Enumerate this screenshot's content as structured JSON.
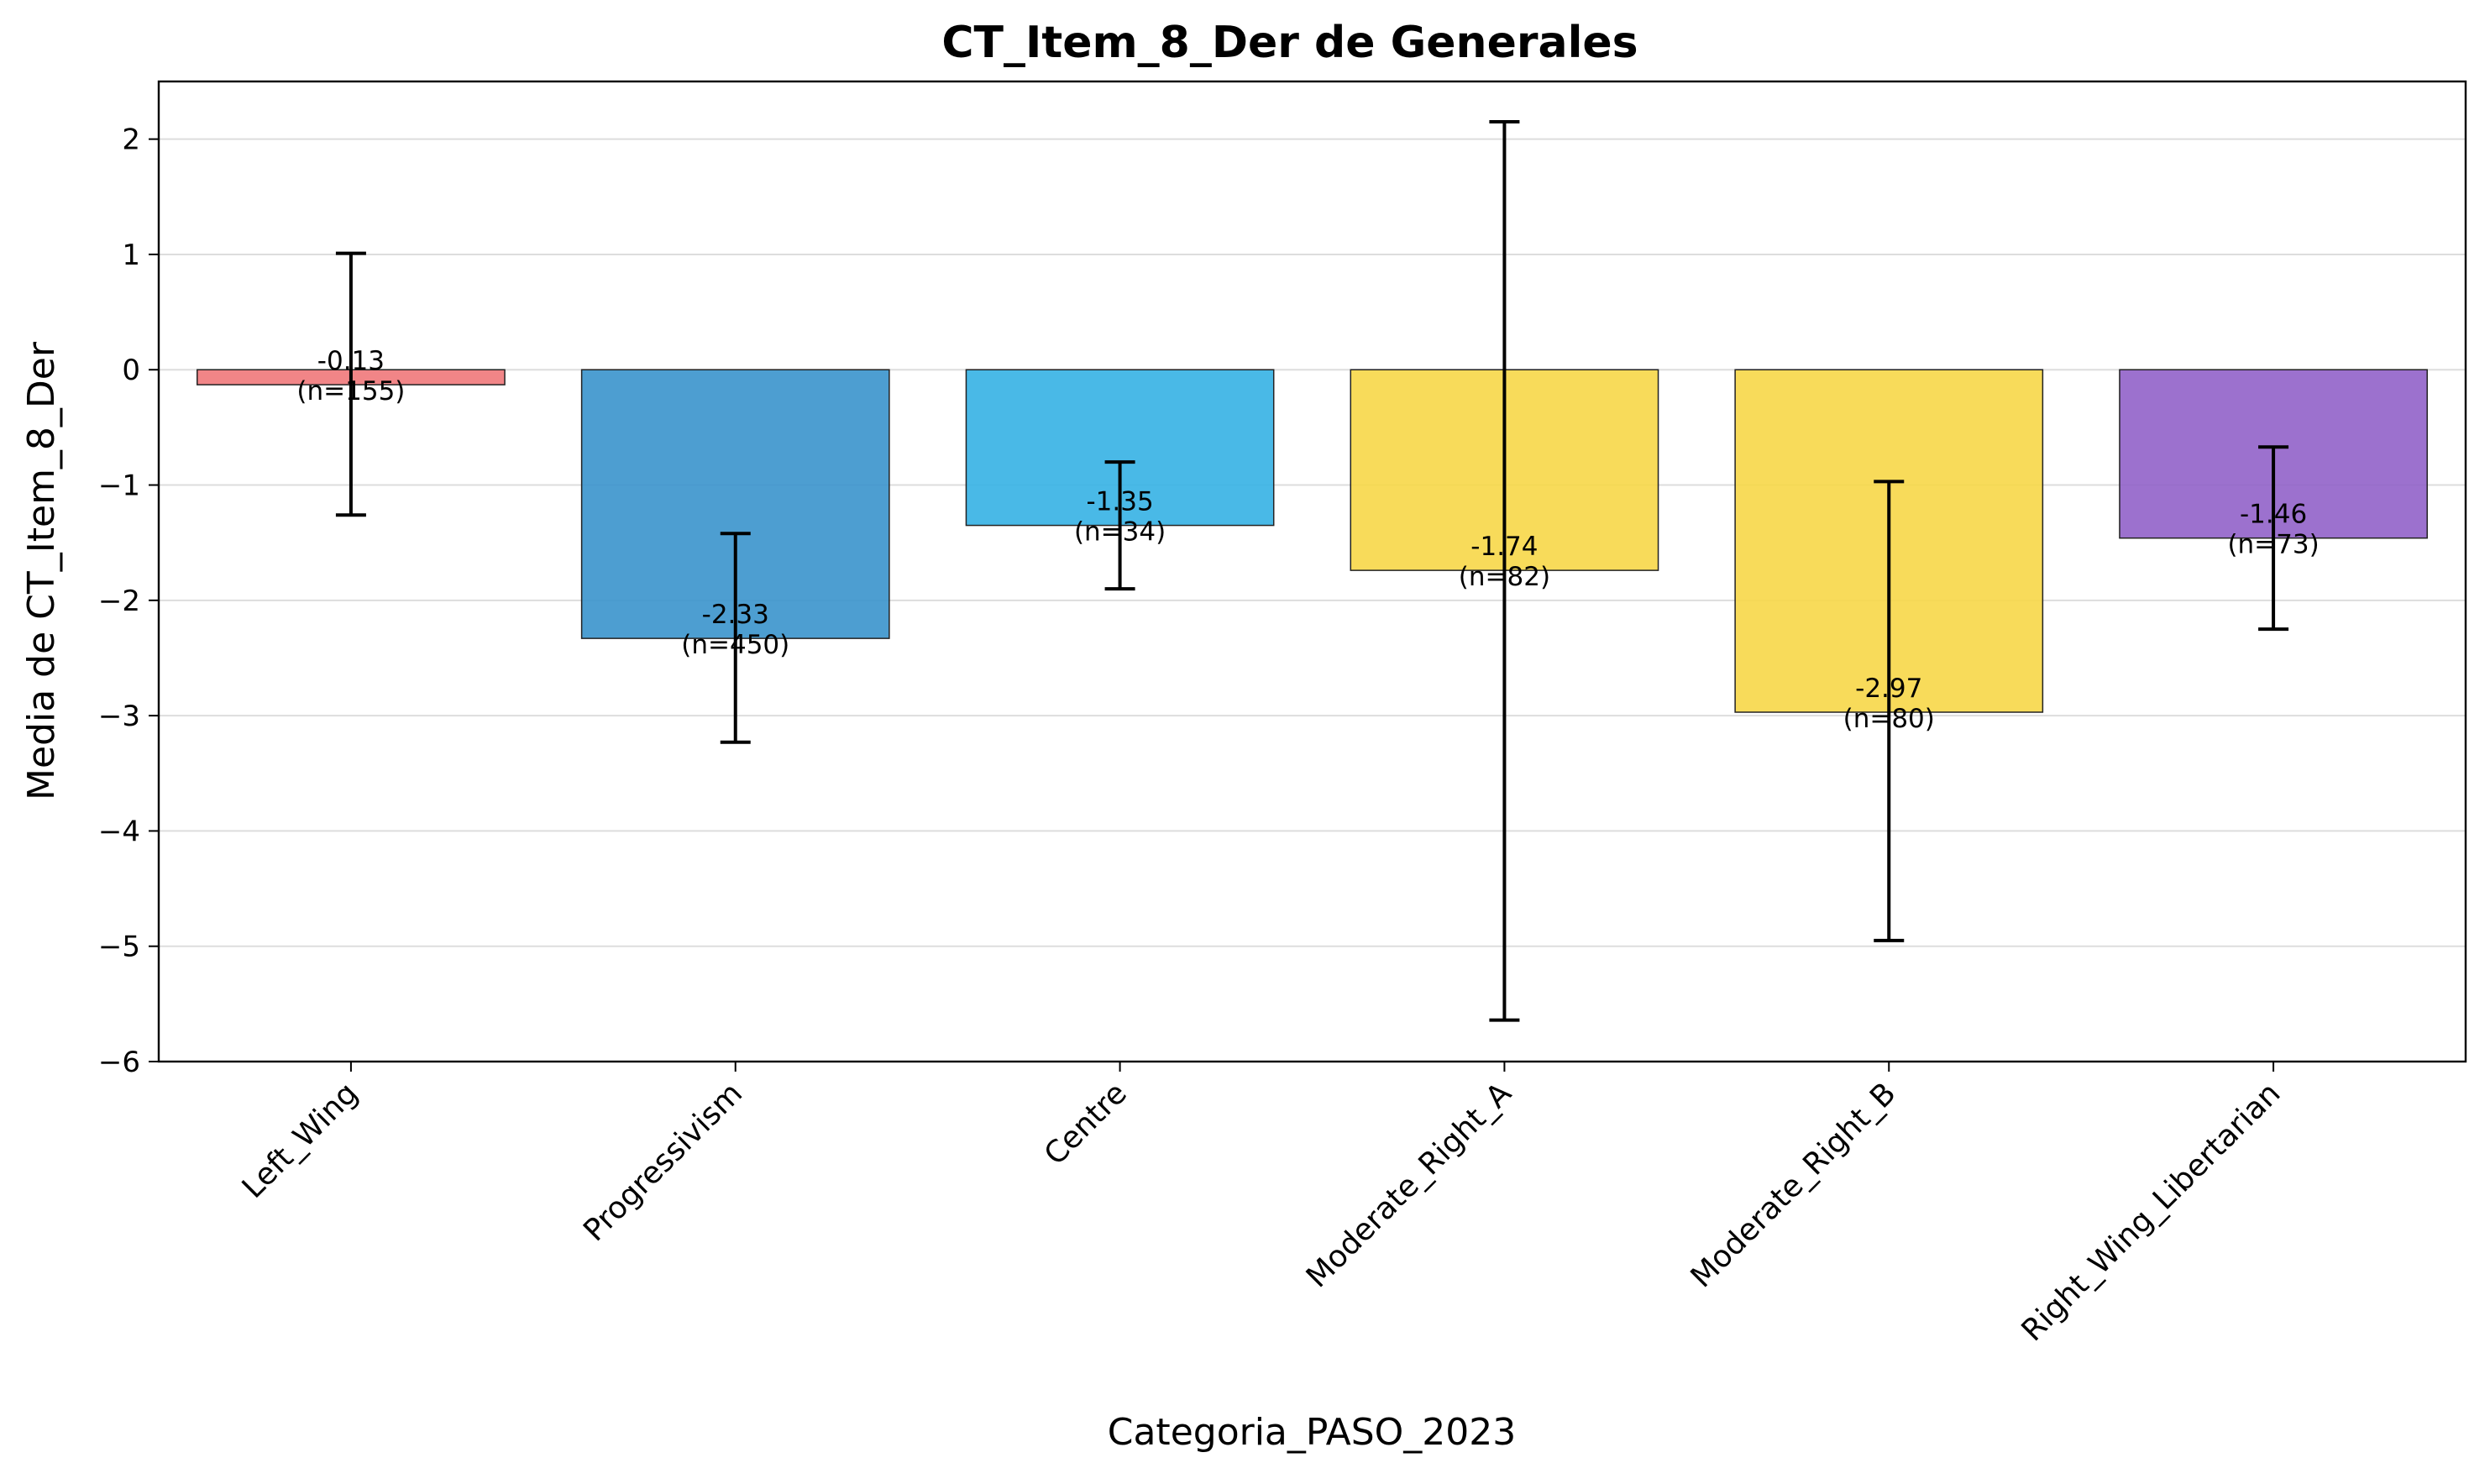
{
  "chart_data": {
    "type": "bar",
    "title": "CT_Item_8_Der de Generales",
    "xlabel": "Categoria_PASO_2023",
    "ylabel": "Media de CT_Item_8_Der",
    "ylim": [
      -6.0,
      2.5
    ],
    "yticks": [
      2,
      1,
      0,
      -1,
      -2,
      -3,
      -4,
      -5,
      -6
    ],
    "ytick_labels": [
      "2",
      "1",
      "0",
      "−1",
      "−2",
      "−3",
      "−4",
      "−5",
      "−6"
    ],
    "grid": "horizontal",
    "categories": [
      "Left_Wing",
      "Progressivism",
      "Centre",
      "Moderate_Right_A",
      "Moderate_Right_B",
      "Right_Wing_Libertarian"
    ],
    "values": [
      -0.13,
      -2.33,
      -1.35,
      -1.74,
      -2.97,
      -1.46
    ],
    "error_low": [
      -1.26,
      -3.23,
      -1.9,
      -5.64,
      -4.95,
      -2.25
    ],
    "error_high": [
      1.01,
      -1.42,
      -0.8,
      2.15,
      -0.97,
      -0.67
    ],
    "counts": [
      155,
      450,
      34,
      82,
      80,
      73
    ],
    "value_labels": [
      "-0.13",
      "-2.33",
      "-1.35",
      "-1.74",
      "-2.97",
      "-1.46"
    ],
    "count_labels": [
      "(n=155)",
      "(n=450)",
      "(n=34)",
      "(n=82)",
      "(n=80)",
      "(n=73)"
    ],
    "colors": [
      "#f0787a",
      "#3a93cc",
      "#35b1e4",
      "#f7d748",
      "#f7d748",
      "#9162c9"
    ]
  }
}
